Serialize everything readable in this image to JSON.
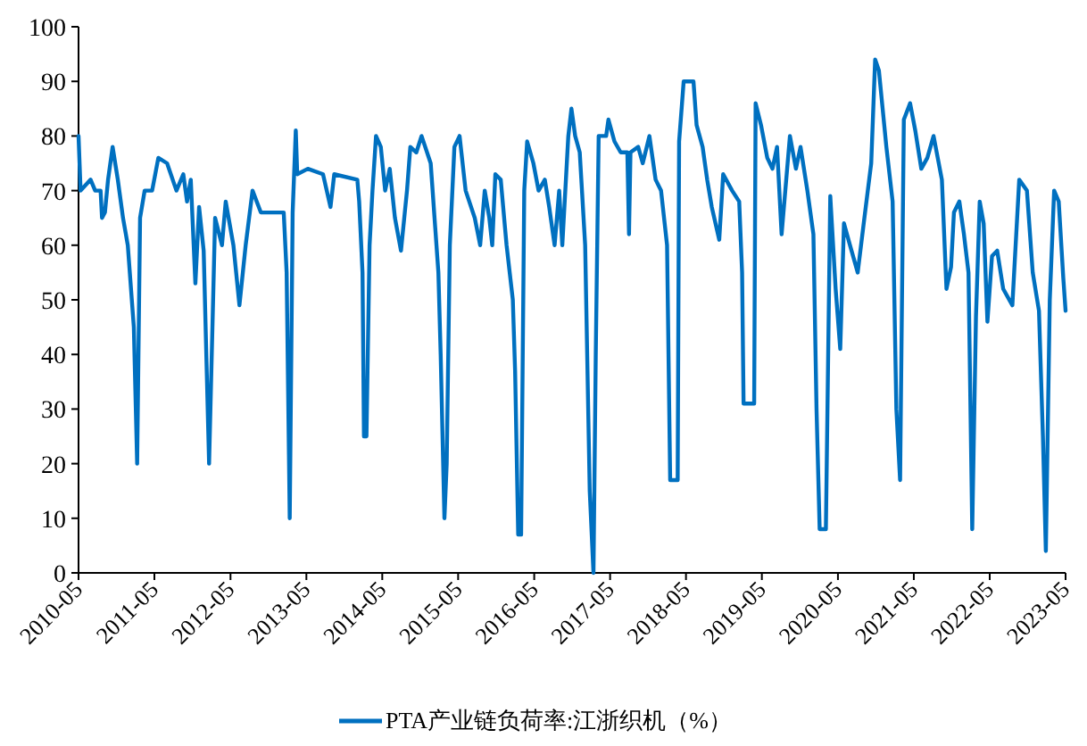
{
  "chart_data": {
    "type": "line",
    "legend": "bottom",
    "grid": false,
    "marker": "none",
    "line_style": "solid",
    "xlim": [
      "2010-05",
      "2023-05"
    ],
    "xticks": [
      "2010-05",
      "2011-05",
      "2012-05",
      "2013-05",
      "2014-05",
      "2015-05",
      "2016-05",
      "2017-05",
      "2018-05",
      "2019-05",
      "2020-05",
      "2021-05",
      "2022-05",
      "2023-05"
    ],
    "ylim": [
      0,
      100
    ],
    "yticks": [
      0,
      10,
      20,
      30,
      40,
      50,
      60,
      70,
      80,
      90,
      100
    ],
    "series": [
      {
        "name": "PTA产业链负荷率:江浙织机（%）",
        "color": "#0070c0",
        "x": [
          "2010-05-01",
          "2010-05-11",
          "2010-06-28",
          "2010-07-20",
          "2010-08-15",
          "2010-08-22",
          "2010-09-05",
          "2010-09-20",
          "2010-10-12",
          "2010-11-06",
          "2010-12-01",
          "2010-12-24",
          "2011-01-22",
          "2011-02-07",
          "2011-02-21",
          "2011-03-15",
          "2011-04-20",
          "2011-05-20",
          "2011-07-01",
          "2011-08-15",
          "2011-09-17",
          "2011-10-05",
          "2011-10-23",
          "2011-11-14",
          "2011-12-02",
          "2011-12-24",
          "2012-01-19",
          "2012-02-17",
          "2012-03-21",
          "2012-04-08",
          "2012-05-15",
          "2012-06-13",
          "2012-07-13",
          "2012-08-15",
          "2012-09-24",
          "2013-01-12",
          "2013-01-26",
          "2013-02-10",
          "2013-02-24",
          "2013-03-11",
          "2013-03-18",
          "2013-05-08",
          "2013-07-20",
          "2013-08-25",
          "2013-09-12",
          "2014-01-01",
          "2014-01-10",
          "2014-01-26",
          "2014-02-02",
          "2014-02-14",
          "2014-03-01",
          "2014-03-15",
          "2014-04-01",
          "2014-04-24",
          "2014-05-15",
          "2014-06-06",
          "2014-07-01",
          "2014-07-30",
          "2014-08-28",
          "2014-09-13",
          "2014-10-12",
          "2014-11-06",
          "2014-12-20",
          "2015-01-26",
          "2015-02-06",
          "2015-02-24",
          "2015-03-07",
          "2015-03-22",
          "2015-04-13",
          "2015-05-08",
          "2015-06-06",
          "2015-07-20",
          "2015-08-15",
          "2015-09-06",
          "2015-09-28",
          "2015-10-12",
          "2015-10-27",
          "2015-11-22",
          "2015-12-20",
          "2016-01-19",
          "2016-01-30",
          "2016-02-14",
          "2016-02-28",
          "2016-03-14",
          "2016-03-28",
          "2016-04-27",
          "2016-05-22",
          "2016-06-21",
          "2016-07-12",
          "2016-08-07",
          "2016-08-29",
          "2016-09-13",
          "2016-10-12",
          "2016-10-27",
          "2016-11-14",
          "2016-12-06",
          "2017-01-01",
          "2017-01-23",
          "2017-02-10",
          "2017-02-21",
          "2017-03-07",
          "2017-04-12",
          "2017-04-23",
          "2017-05-22",
          "2017-06-21",
          "2017-07-23",
          "2017-07-31",
          "2017-08-07",
          "2017-09-13",
          "2017-10-05",
          "2017-11-06",
          "2017-12-06",
          "2018-01-01",
          "2018-01-30",
          "2018-02-14",
          "2018-03-22",
          "2018-03-29",
          "2018-04-20",
          "2018-06-06",
          "2018-06-21",
          "2018-07-20",
          "2018-08-11",
          "2018-09-02",
          "2018-10-08",
          "2018-10-27",
          "2018-12-09",
          "2019-01-12",
          "2019-01-26",
          "2019-02-02",
          "2019-03-25",
          "2019-04-01",
          "2019-04-27",
          "2019-05-27",
          "2019-06-21",
          "2019-07-13",
          "2019-08-04",
          "2019-09-13",
          "2019-10-12",
          "2019-11-03",
          "2019-12-06",
          "2020-01-04",
          "2020-01-19",
          "2020-02-03",
          "2020-03-04",
          "2020-03-25",
          "2020-04-20",
          "2020-05-12",
          "2020-05-30",
          "2020-06-28",
          "2020-08-04",
          "2020-09-02",
          "2020-10-08",
          "2020-10-27",
          "2020-11-14",
          "2020-12-20",
          "2021-01-19",
          "2021-02-06",
          "2021-02-24",
          "2021-03-14",
          "2021-04-13",
          "2021-05-08",
          "2021-06-06",
          "2021-07-05",
          "2021-08-04",
          "2021-09-13",
          "2021-10-05",
          "2021-10-27",
          "2021-11-10",
          "2021-12-06",
          "2021-12-28",
          "2022-01-19",
          "2022-02-06",
          "2022-02-24",
          "2022-03-14",
          "2022-04-02",
          "2022-04-20",
          "2022-05-12",
          "2022-06-06",
          "2022-07-05",
          "2022-08-18",
          "2022-09-20",
          "2022-10-27",
          "2022-11-24",
          "2022-12-24",
          "2023-01-12",
          "2023-01-26",
          "2023-02-14",
          "2023-03-07",
          "2023-03-29",
          "2023-04-20",
          "2023-05-01"
        ],
        "values": [
          80,
          70,
          72,
          70,
          70,
          65,
          66,
          72,
          78,
          72,
          65,
          60,
          45,
          20,
          65,
          70,
          70,
          76,
          75,
          70,
          73,
          68,
          72,
          53,
          67,
          59,
          20,
          65,
          60,
          68,
          60,
          49,
          60,
          70,
          66,
          66,
          55,
          10,
          66,
          81,
          73,
          74,
          73,
          67,
          73,
          72,
          68,
          55,
          25,
          25,
          60,
          70,
          80,
          78,
          70,
          74,
          65,
          59,
          70,
          78,
          77,
          80,
          75,
          55,
          40,
          10,
          20,
          60,
          78,
          80,
          70,
          65,
          60,
          70,
          65,
          60,
          73,
          72,
          60,
          50,
          37,
          7,
          7,
          70,
          79,
          75,
          70,
          72,
          67,
          60,
          70,
          60,
          80,
          85,
          80,
          77,
          60,
          15,
          0,
          40,
          80,
          80,
          83,
          79,
          77,
          77,
          62,
          77,
          78,
          75,
          80,
          72,
          70,
          60,
          17,
          17,
          79,
          90,
          90,
          82,
          78,
          72,
          67,
          61,
          73,
          70,
          68,
          55,
          31,
          31,
          86,
          82,
          76,
          74,
          78,
          62,
          80,
          74,
          78,
          70,
          62,
          30,
          8,
          8,
          69,
          52,
          41,
          64,
          60,
          55,
          64,
          75,
          94,
          92,
          78,
          68,
          30,
          17,
          83,
          86,
          81,
          74,
          76,
          80,
          72,
          52,
          56,
          66,
          68,
          62,
          55,
          8,
          47,
          68,
          64,
          46,
          58,
          59,
          52,
          49,
          72,
          70,
          55,
          48,
          25,
          4,
          50,
          70,
          68,
          54,
          48
        ]
      }
    ]
  }
}
